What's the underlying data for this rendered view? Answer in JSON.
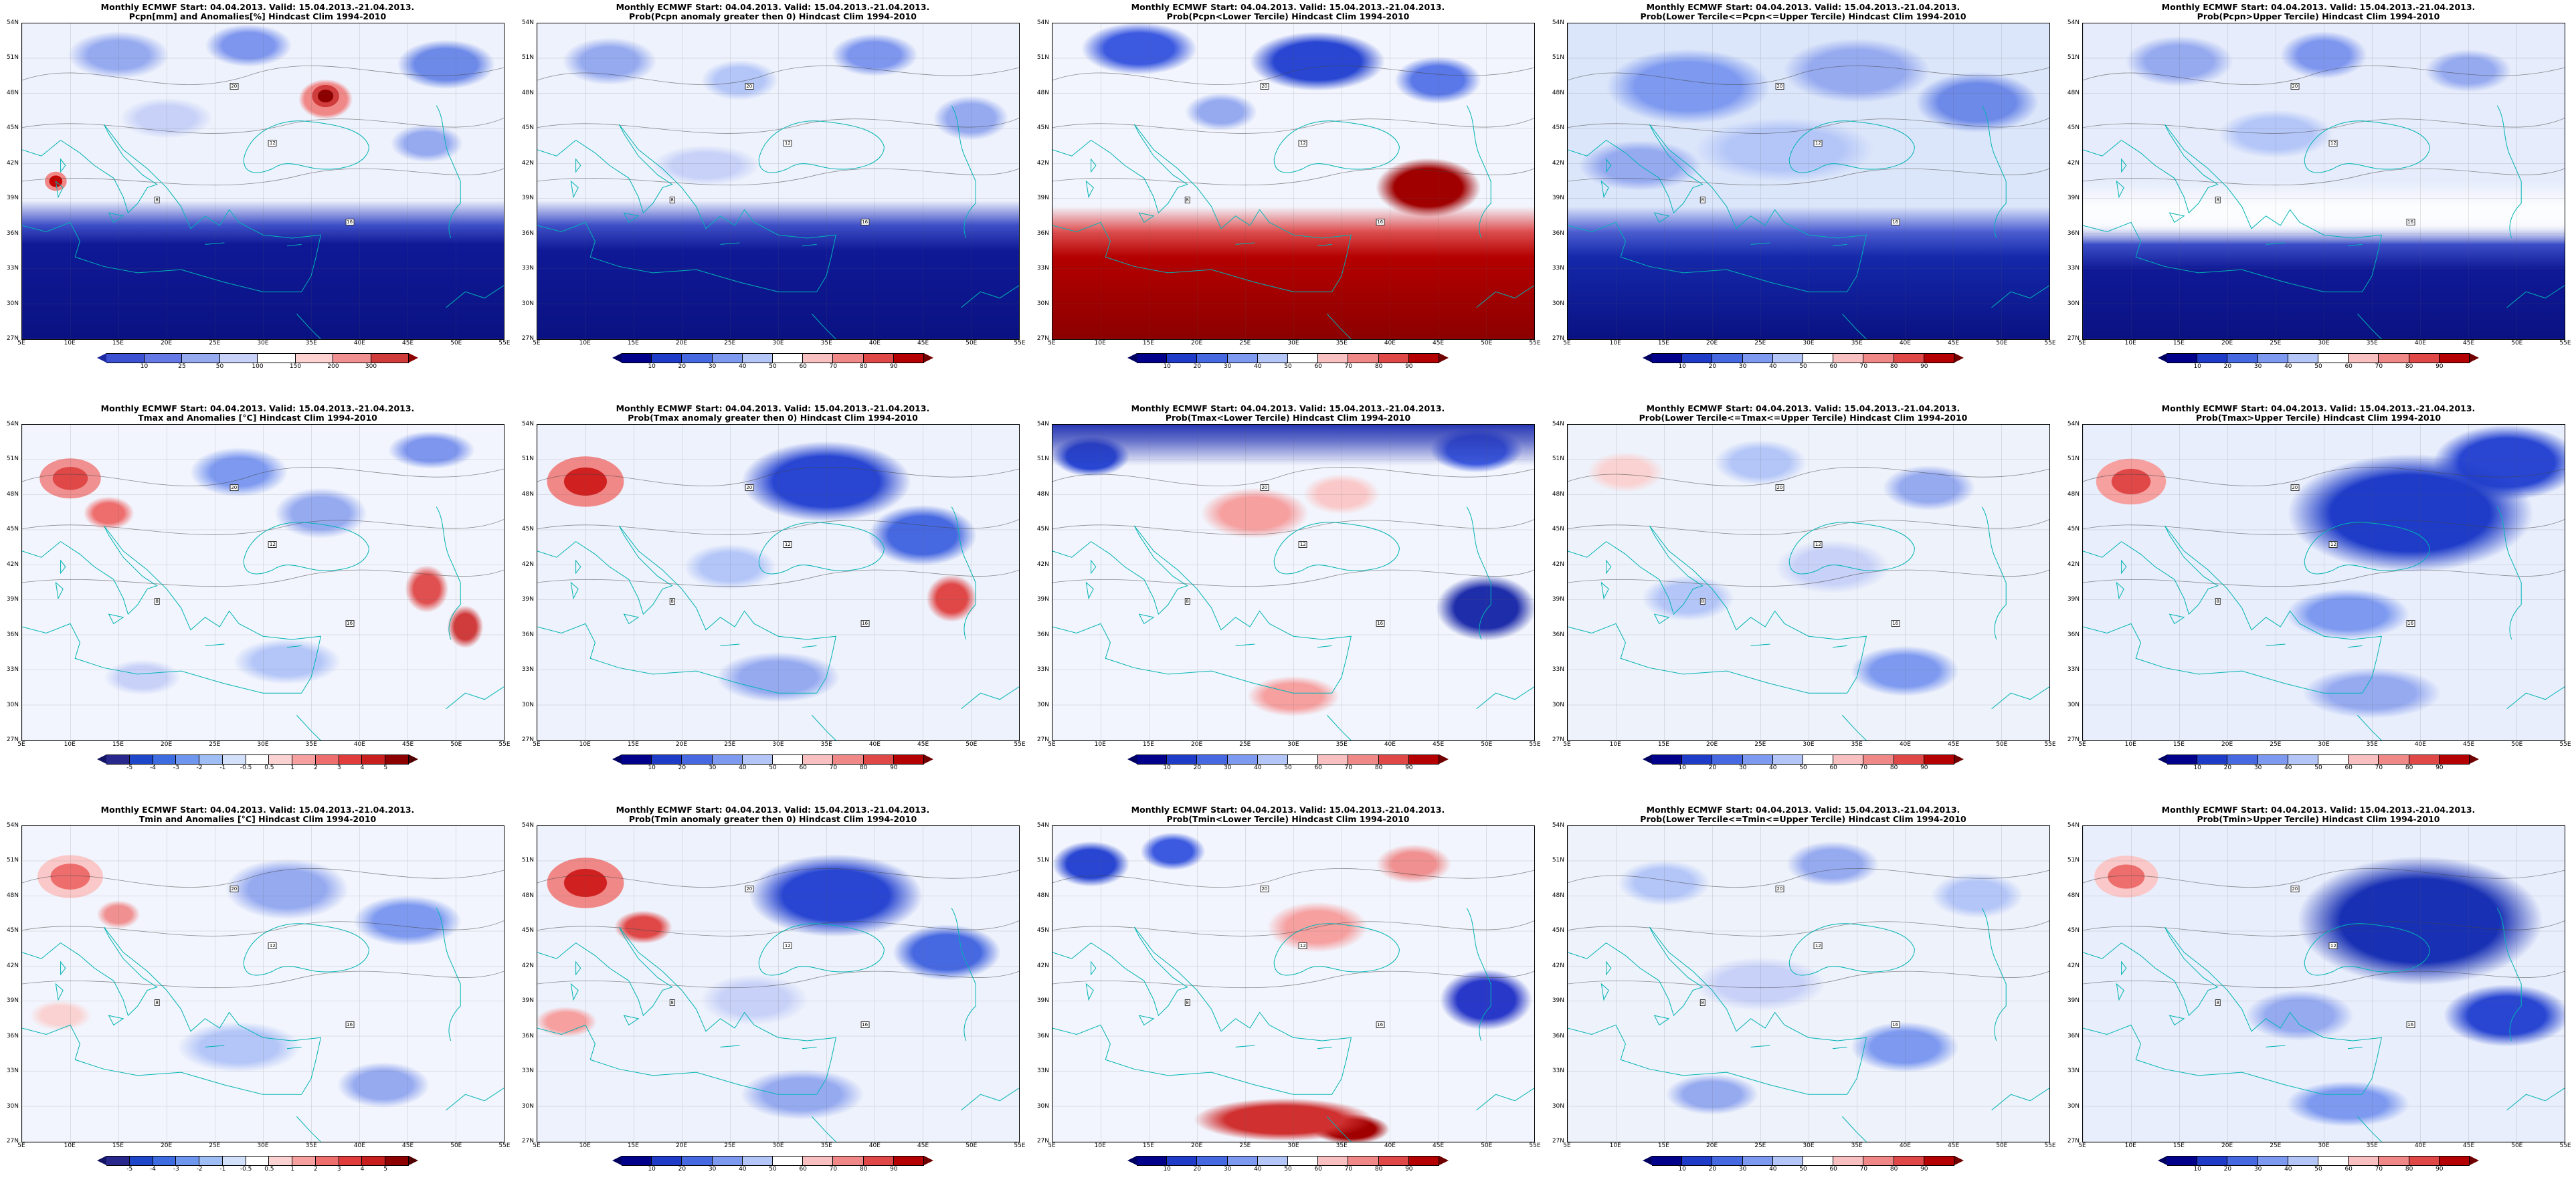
{
  "header": {
    "title1": "Monthly ECMWF Start: 04.04.2013. Valid: 15.04.2013.-21.04.2013."
  },
  "axes": {
    "lat": [
      "54N",
      "51N",
      "48N",
      "45N",
      "42N",
      "39N",
      "36N",
      "33N",
      "30N",
      "27N"
    ],
    "lon": [
      "5E",
      "10E",
      "15E",
      "20E",
      "25E",
      "30E",
      "35E",
      "40E",
      "45E",
      "50E",
      "55E"
    ]
  },
  "map_annotations": {
    "contour_labels": [
      "8",
      "12",
      "16",
      "20"
    ]
  },
  "colorbars": {
    "pcpn": {
      "ticks": [
        "10",
        "25",
        "50",
        "100",
        "150",
        "200",
        "300"
      ],
      "colors": [
        "#3c50d2",
        "#6478e6",
        "#96aaf0",
        "#c8d2f8",
        "#ffffff",
        "#ffd2d2",
        "#f09090",
        "#d03c3c"
      ],
      "arrow_left": "#1e28a0",
      "arrow_right": "#8c0000"
    },
    "prob": {
      "ticks": [
        "10",
        "20",
        "30",
        "40",
        "50",
        "60",
        "70",
        "80",
        "90"
      ],
      "colors": [
        "#00008b",
        "#1e3cc8",
        "#4668e0",
        "#7e9af0",
        "#b4c6f8",
        "#ffffff",
        "#f8c0c0",
        "#f08888",
        "#e04848",
        "#b40000"
      ],
      "arrow_left": "#000060",
      "arrow_right": "#700000"
    },
    "t_anom": {
      "ticks": [
        "-5",
        "-4",
        "-3",
        "-2",
        "-1",
        "-0.5",
        "0.5",
        "1",
        "2",
        "3",
        "4",
        "5"
      ],
      "colors": [
        "#28288c",
        "#1e46c8",
        "#3c6ce0",
        "#6e96ee",
        "#a0bef6",
        "#d2e0fa",
        "#ffffff",
        "#fad2d2",
        "#f6a0a0",
        "#ee6e6e",
        "#e03c3c",
        "#c81e1e",
        "#8c0000"
      ],
      "arrow_left": "#141464",
      "arrow_right": "#500000"
    }
  },
  "panels": [
    {
      "id": "pcpn-amount-anomaly",
      "title2": "Pcpn[mm] and Anomalies[%] Hindcast Clim 1994-2010",
      "colorbar": "pcpn"
    },
    {
      "id": "pcpn-prob-pos-anomaly",
      "title2": "Prob(Pcpn anomaly greater then 0) Hindcast Clim 1994-2010",
      "colorbar": "prob"
    },
    {
      "id": "pcpn-prob-below-lower",
      "title2": "Prob(Pcpn<Lower Tercile) Hindcast Clim 1994-2010",
      "colorbar": "prob"
    },
    {
      "id": "pcpn-prob-middle",
      "title2": "Prob(Lower Tercile<=Pcpn<=Upper Tercile) Hindcast Clim 1994-2010",
      "colorbar": "prob"
    },
    {
      "id": "pcpn-prob-above-upper",
      "title2": "Prob(Pcpn>Upper Tercile) Hindcast Clim 1994-2010",
      "colorbar": "prob"
    },
    {
      "id": "tmax-amount-anomaly",
      "title2": "Tmax and Anomalies [°C] Hindcast Clim 1994-2010",
      "colorbar": "t_anom"
    },
    {
      "id": "tmax-prob-pos-anomaly",
      "title2": "Prob(Tmax anomaly greater then 0) Hindcast Clim 1994-2010",
      "colorbar": "prob"
    },
    {
      "id": "tmax-prob-below-lower",
      "title2": "Prob(Tmax<Lower Tercile) Hindcast Clim 1994-2010",
      "colorbar": "prob"
    },
    {
      "id": "tmax-prob-middle",
      "title2": "Prob(Lower Tercile<=Tmax<=Upper Tercile) Hindcast Clim 1994-2010",
      "colorbar": "prob"
    },
    {
      "id": "tmax-prob-above-upper",
      "title2": "Prob(Tmax>Upper Tercile) Hindcast Clim 1994-2010",
      "colorbar": "prob"
    },
    {
      "id": "tmin-amount-anomaly",
      "title2": "Tmin and Anomalies [°C] Hindcast Clim 1994-2010",
      "colorbar": "t_anom"
    },
    {
      "id": "tmin-prob-pos-anomaly",
      "title2": "Prob(Tmin anomaly greater then 0) Hindcast Clim 1994-2010",
      "colorbar": "prob"
    },
    {
      "id": "tmin-prob-below-lower",
      "title2": "Prob(Tmin<Lower Tercile) Hindcast Clim 1994-2010",
      "colorbar": "prob"
    },
    {
      "id": "tmin-prob-middle",
      "title2": "Prob(Lower Tercile<=Tmin<=Upper Tercile) Hindcast Clim 1994-2010",
      "colorbar": "prob"
    },
    {
      "id": "tmin-prob-above-upper",
      "title2": "Prob(Tmin>Upper Tercile) Hindcast Clim 1994-2010",
      "colorbar": "prob"
    }
  ]
}
